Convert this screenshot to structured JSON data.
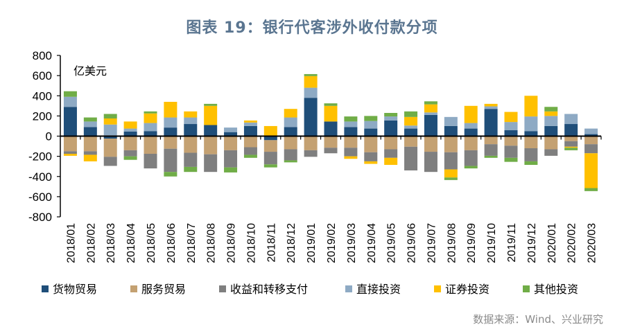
{
  "chart_data": {
    "type": "bar",
    "stacked": true,
    "title": "图表 19：银行代客涉外收付款分项",
    "unit_label": "亿美元",
    "source": "数据来源：Wind、兴业研究",
    "ylim": [
      -800,
      800
    ],
    "yticks": [
      800,
      600,
      400,
      200,
      0,
      -200,
      -400,
      -600,
      -800
    ],
    "grid": false,
    "legend_position": "bottom",
    "categories": [
      "2018/01",
      "2018/02",
      "2018/03",
      "2018/04",
      "2018/05",
      "2018/06",
      "2018/07",
      "2018/08",
      "2018/09",
      "2018/10",
      "2018/11",
      "2018/12",
      "2019/01",
      "2019/02",
      "2019/03",
      "2019/04",
      "2019/05",
      "2019/06",
      "2019/07",
      "2019/08",
      "2019/09",
      "2019/10",
      "2019/11",
      "2019/12",
      "2020/01",
      "2020/02",
      "2020/03"
    ],
    "series": [
      {
        "name": "货物贸易",
        "color": "#1f4e79",
        "values": [
          290,
          90,
          -25,
          45,
          50,
          85,
          120,
          110,
          40,
          100,
          -40,
          90,
          380,
          145,
          90,
          75,
          155,
          75,
          210,
          100,
          75,
          270,
          60,
          50,
          100,
          120,
          20
        ]
      },
      {
        "name": "服务贸易",
        "color": "#c4a172",
        "values": [
          -150,
          -150,
          -180,
          -140,
          -175,
          -125,
          -165,
          -180,
          -140,
          -110,
          -115,
          -130,
          -140,
          -115,
          -115,
          -160,
          -130,
          -105,
          -155,
          -160,
          -140,
          -80,
          -95,
          -120,
          -130,
          -50,
          -80
        ]
      },
      {
        "name": "收益和转移支付",
        "color": "#7f7f7f",
        "values": [
          -25,
          -35,
          -90,
          -60,
          -145,
          -230,
          -140,
          -175,
          -170,
          -75,
          -125,
          -110,
          -65,
          -55,
          -85,
          -90,
          -85,
          -235,
          -200,
          -170,
          -155,
          -115,
          -120,
          -130,
          -65,
          -55,
          -90
        ]
      },
      {
        "name": "直接投资",
        "color": "#8eaac4",
        "values": [
          100,
          55,
          115,
          30,
          80,
          100,
          65,
          0,
          45,
          35,
          0,
          95,
          100,
          0,
          55,
          75,
          40,
          30,
          25,
          90,
          55,
          25,
          80,
          145,
          100,
          100,
          55
        ]
      },
      {
        "name": "证券投资",
        "color": "#ffc000",
        "values": [
          -20,
          -65,
          60,
          70,
          95,
          155,
          60,
          190,
          0,
          20,
          100,
          85,
          115,
          155,
          -25,
          -25,
          -70,
          85,
          80,
          -80,
          170,
          25,
          100,
          205,
          45,
          -10,
          -345
        ]
      },
      {
        "name": "其他投资",
        "color": "#70ad47",
        "values": [
          55,
          40,
          45,
          -35,
          20,
          -45,
          -50,
          20,
          -50,
          -30,
          -30,
          -20,
          20,
          25,
          50,
          50,
          35,
          55,
          30,
          -25,
          -25,
          -20,
          -40,
          -35,
          45,
          -25,
          -30
        ]
      }
    ]
  }
}
